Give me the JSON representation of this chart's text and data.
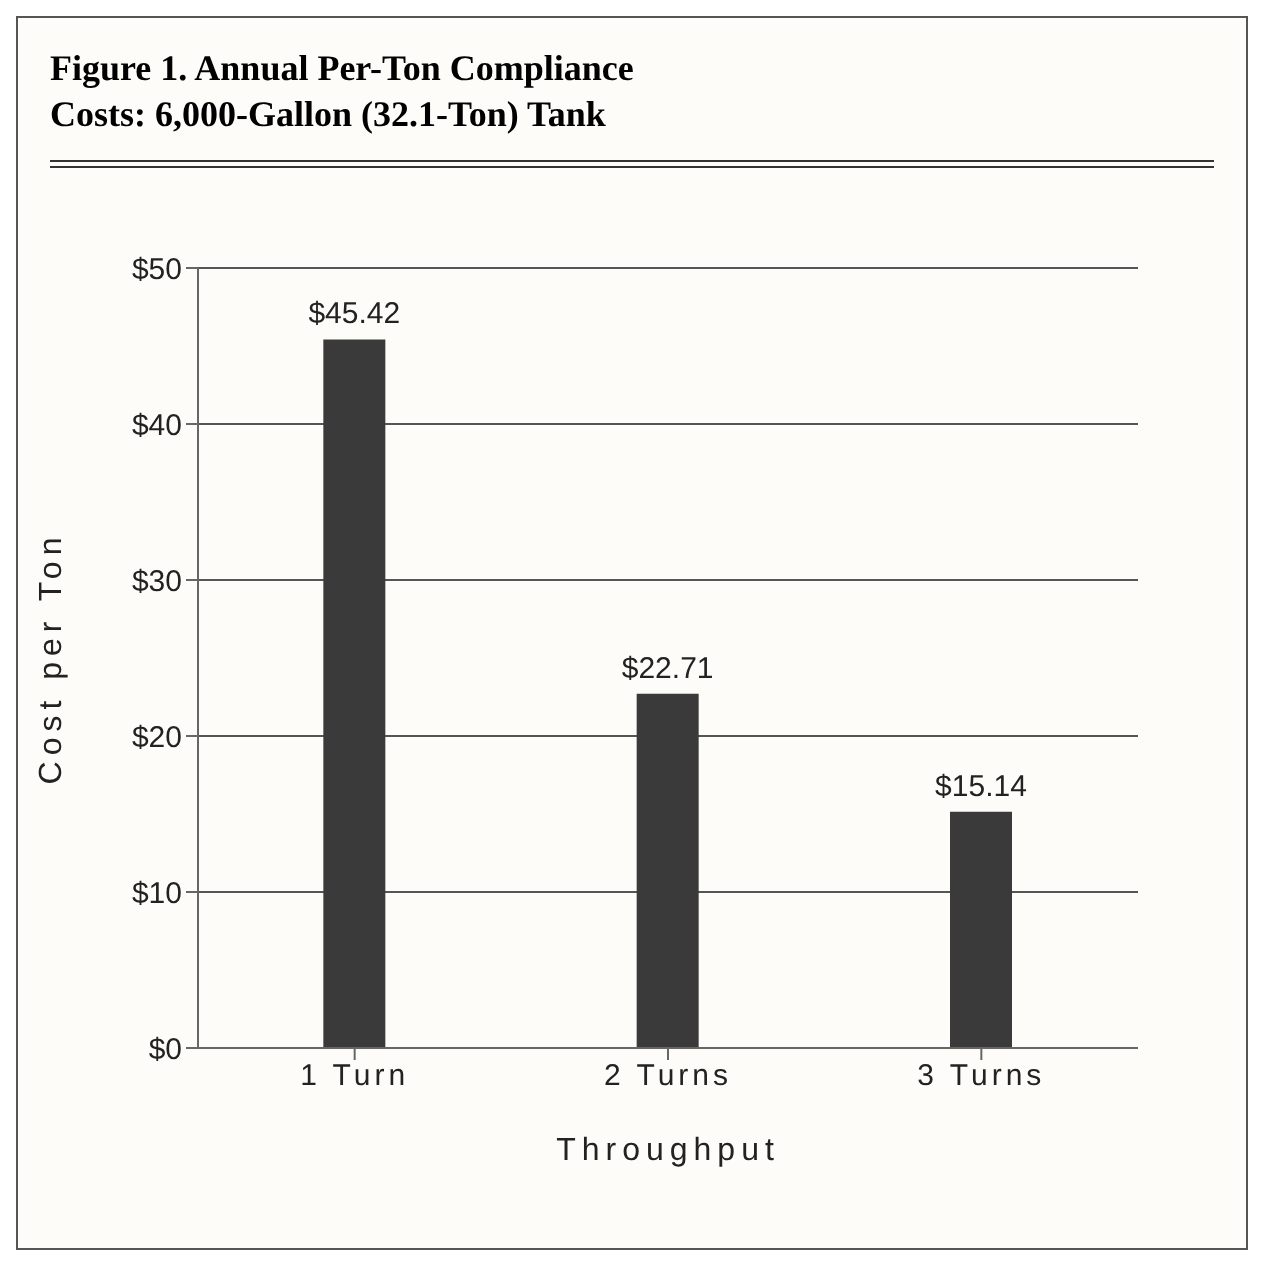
{
  "chart_data": {
    "type": "bar",
    "title": "Figure 1. Annual Per-Ton Compliance Costs: 6,000-Gallon (32.1-Ton) Tank",
    "xlabel": "Throughput",
    "ylabel": "Cost per Ton",
    "categories": [
      "1 Turn",
      "2 Turns",
      "3 Turns"
    ],
    "values": [
      45.42,
      22.71,
      15.14
    ],
    "value_labels": [
      "$45.42",
      "$22.71",
      "$15.14"
    ],
    "color": "#3a3a3a",
    "ylim": [
      0,
      50
    ],
    "yticks": [
      {
        "value": 0,
        "label": "$0"
      },
      {
        "value": 10,
        "label": "$10"
      },
      {
        "value": 20,
        "label": "$20"
      },
      {
        "value": 30,
        "label": "$30"
      },
      {
        "value": 40,
        "label": "$40"
      },
      {
        "value": 50,
        "label": "$50"
      }
    ],
    "grid": "y"
  }
}
